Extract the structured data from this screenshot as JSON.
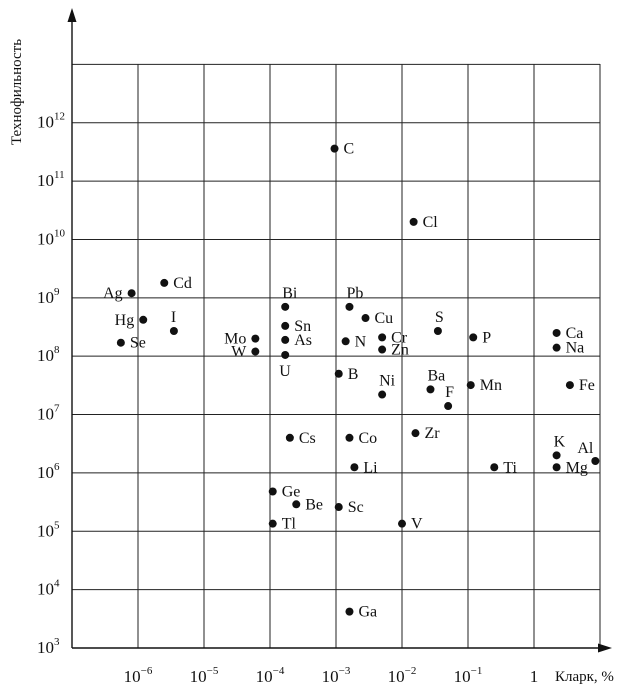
{
  "chart_data": {
    "type": "scatter",
    "xlabel": "Кларк, %",
    "ylabel": "Технофильность",
    "x_scale": "log",
    "y_scale": "log",
    "xlim": [
      1e-07,
      10
    ],
    "ylim": [
      1000,
      100000000000000.0
    ],
    "grid": true,
    "x_ticks": [
      {
        "base": "10",
        "exp": "−6"
      },
      {
        "base": "10",
        "exp": "−5"
      },
      {
        "base": "10",
        "exp": "−4"
      },
      {
        "base": "10",
        "exp": "−3"
      },
      {
        "base": "10",
        "exp": "−2"
      },
      {
        "base": "10",
        "exp": "−1"
      },
      {
        "base": "1",
        "exp": ""
      }
    ],
    "y_ticks": [
      {
        "base": "10",
        "exp": "3"
      },
      {
        "base": "10",
        "exp": "4"
      },
      {
        "base": "10",
        "exp": "5"
      },
      {
        "base": "10",
        "exp": "6"
      },
      {
        "base": "10",
        "exp": "7"
      },
      {
        "base": "10",
        "exp": "8"
      },
      {
        "base": "10",
        "exp": "9"
      },
      {
        "base": "10",
        "exp": "10"
      },
      {
        "base": "10",
        "exp": "11"
      },
      {
        "base": "10",
        "exp": "12"
      }
    ],
    "points": [
      {
        "label": "C",
        "x": 0.00095,
        "y": 360000000000.0,
        "label_pos": "right"
      },
      {
        "label": "Cl",
        "x": 0.015,
        "y": 20000000000.0,
        "label_pos": "right"
      },
      {
        "label": "Ag",
        "x": 8e-07,
        "y": 1200000000.0,
        "label_pos": "left"
      },
      {
        "label": "Cd",
        "x": 2.5e-06,
        "y": 1800000000.0,
        "label_pos": "right"
      },
      {
        "label": "Bi",
        "x": 0.00017,
        "y": 700000000.0,
        "label_pos": "above"
      },
      {
        "label": "Pb",
        "x": 0.0016,
        "y": 700000000.0,
        "label_pos": "above"
      },
      {
        "label": "Hg",
        "x": 1.2e-06,
        "y": 420000000.0,
        "label_pos": "left"
      },
      {
        "label": "I",
        "x": 3.5e-06,
        "y": 270000000.0,
        "label_pos": "above"
      },
      {
        "label": "Sn",
        "x": 0.00017,
        "y": 330000000.0,
        "label_pos": "right"
      },
      {
        "label": "Cu",
        "x": 0.0028,
        "y": 450000000.0,
        "label_pos": "right"
      },
      {
        "label": "S",
        "x": 0.035,
        "y": 270000000.0,
        "label_pos": "above"
      },
      {
        "label": "Ca",
        "x": 2.2,
        "y": 250000000.0,
        "label_pos": "right"
      },
      {
        "label": "Se",
        "x": 5.5e-07,
        "y": 170000000.0,
        "label_pos": "right"
      },
      {
        "label": "Mo",
        "x": 6e-05,
        "y": 200000000.0,
        "label_pos": "left"
      },
      {
        "label": "As",
        "x": 0.00017,
        "y": 190000000.0,
        "label_pos": "right"
      },
      {
        "label": "N",
        "x": 0.0014,
        "y": 180000000.0,
        "label_pos": "right"
      },
      {
        "label": "Cr",
        "x": 0.005,
        "y": 210000000.0,
        "label_pos": "right"
      },
      {
        "label": "P",
        "x": 0.12,
        "y": 210000000.0,
        "label_pos": "right"
      },
      {
        "label": "W",
        "x": 6e-05,
        "y": 120000000.0,
        "label_pos": "left"
      },
      {
        "label": "Zn",
        "x": 0.005,
        "y": 130000000.0,
        "label_pos": "right"
      },
      {
        "label": "Na",
        "x": 2.2,
        "y": 140000000.0,
        "label_pos": "right"
      },
      {
        "label": "U",
        "x": 0.00017,
        "y": 105000000.0,
        "label_pos": "below"
      },
      {
        "label": "B",
        "x": 0.0011,
        "y": 50000000.0,
        "label_pos": "right"
      },
      {
        "label": "Ba",
        "x": 0.027,
        "y": 27000000.0,
        "label_pos": "above"
      },
      {
        "label": "Mn",
        "x": 0.11,
        "y": 32000000.0,
        "label_pos": "right"
      },
      {
        "label": "Fe",
        "x": 3.5,
        "y": 32000000.0,
        "label_pos": "right"
      },
      {
        "label": "Ni",
        "x": 0.005,
        "y": 22000000.0,
        "label_pos": "above"
      },
      {
        "label": "F",
        "x": 0.05,
        "y": 14000000.0,
        "label_pos": "above"
      },
      {
        "label": "Cs",
        "x": 0.0002,
        "y": 4000000.0,
        "label_pos": "right"
      },
      {
        "label": "Co",
        "x": 0.0016,
        "y": 4000000.0,
        "label_pos": "right"
      },
      {
        "label": "Zr",
        "x": 0.016,
        "y": 4800000.0,
        "label_pos": "right"
      },
      {
        "label": "K",
        "x": 2.2,
        "y": 2000000.0,
        "label_pos": "above"
      },
      {
        "label": "Al",
        "x": 8.5,
        "y": 1600000.0,
        "label_pos": "above-left"
      },
      {
        "label": "Li",
        "x": 0.0019,
        "y": 1250000.0,
        "label_pos": "right"
      },
      {
        "label": "Ti",
        "x": 0.25,
        "y": 1250000.0,
        "label_pos": "right"
      },
      {
        "label": "Mg",
        "x": 2.2,
        "y": 1250000.0,
        "label_pos": "right"
      },
      {
        "label": "Ge",
        "x": 0.00011,
        "y": 480000.0,
        "label_pos": "right"
      },
      {
        "label": "Be",
        "x": 0.00025,
        "y": 290000.0,
        "label_pos": "right"
      },
      {
        "label": "Sc",
        "x": 0.0011,
        "y": 260000.0,
        "label_pos": "right"
      },
      {
        "label": "Tl",
        "x": 0.00011,
        "y": 135000.0,
        "label_pos": "right"
      },
      {
        "label": "V",
        "x": 0.01,
        "y": 135000.0,
        "label_pos": "right"
      },
      {
        "label": "Ga",
        "x": 0.0016,
        "y": 4200.0,
        "label_pos": "right"
      }
    ]
  }
}
